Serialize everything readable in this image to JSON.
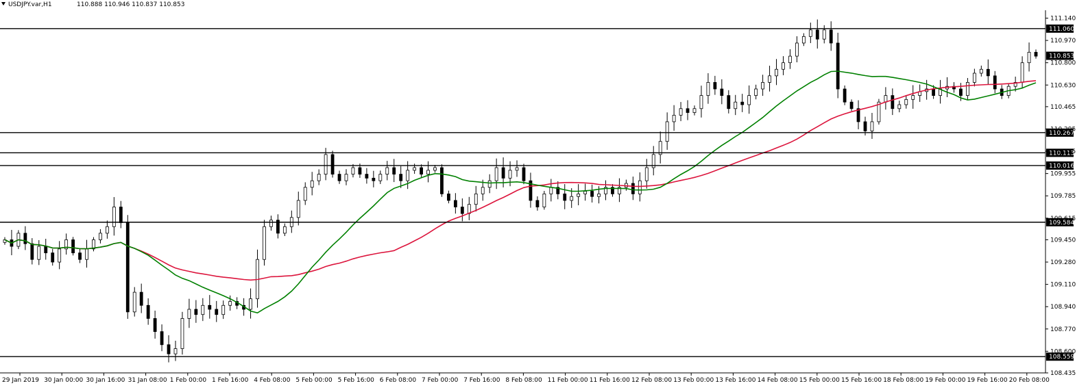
{
  "chart_data": {
    "type": "candlestick",
    "symbol_label": "USDJPY.var,H1",
    "ohlc_label": "110.888 110.946 110.837 110.853",
    "y_ticks": [
      "111.140",
      "110.970",
      "110.800",
      "110.630",
      "110.465",
      "110.295",
      "110.125",
      "109.955",
      "109.785",
      "109.615",
      "109.450",
      "109.280",
      "109.110",
      "108.940",
      "108.770",
      "108.600",
      "108.435"
    ],
    "ylim": [
      108.435,
      111.2
    ],
    "x_ticks": [
      "29 Jan 2019",
      "30 Jan 00:00",
      "30 Jan 16:00",
      "31 Jan 08:00",
      "1 Feb 00:00",
      "1 Feb 16:00",
      "4 Feb 08:00",
      "5 Feb 00:00",
      "5 Feb 16:00",
      "6 Feb 08:00",
      "7 Feb 00:00",
      "7 Feb 16:00",
      "8 Feb 08:00",
      "11 Feb 00:00",
      "11 Feb 16:00",
      "12 Feb 08:00",
      "13 Feb 00:00",
      "13 Feb 16:00",
      "14 Feb 08:00",
      "15 Feb 00:00",
      "15 Feb 16:00",
      "18 Feb 08:00",
      "19 Feb 00:00",
      "19 Feb 16:00",
      "20 Feb 08:00"
    ],
    "levels": [
      {
        "label": "111.060",
        "value": 111.06
      },
      {
        "label": "110.267",
        "value": 110.267
      },
      {
        "label": "110.113",
        "value": 110.113
      },
      {
        "label": "110.016",
        "value": 110.016
      },
      {
        "label": "109.584",
        "value": 109.584
      },
      {
        "label": "108.559",
        "value": 108.559
      }
    ],
    "current_price": {
      "label": "110.853",
      "value": 110.853
    },
    "closes": [
      109.45,
      109.4,
      109.5,
      109.42,
      109.3,
      109.4,
      109.35,
      109.28,
      109.38,
      109.45,
      109.35,
      109.3,
      109.38,
      109.45,
      109.5,
      109.55,
      109.7,
      109.58,
      108.9,
      109.05,
      108.95,
      108.85,
      108.75,
      108.65,
      108.58,
      108.62,
      108.85,
      108.92,
      108.88,
      108.95,
      108.92,
      108.88,
      108.95,
      108.98,
      108.95,
      108.92,
      109.0,
      109.3,
      109.55,
      109.6,
      109.5,
      109.55,
      109.62,
      109.75,
      109.85,
      109.9,
      109.95,
      110.1,
      109.95,
      109.9,
      109.95,
      110.0,
      109.95,
      109.92,
      109.9,
      109.95,
      110.0,
      109.95,
      109.9,
      109.98,
      110.0,
      109.95,
      109.98,
      110.0,
      109.8,
      109.75,
      109.7,
      109.65,
      109.72,
      109.8,
      109.85,
      109.9,
      110.0,
      109.92,
      109.98,
      110.0,
      109.9,
      109.75,
      109.7,
      109.8,
      109.85,
      109.8,
      109.75,
      109.78,
      109.8,
      109.82,
      109.78,
      109.8,
      109.85,
      109.8,
      109.85,
      109.88,
      109.8,
      109.9,
      110.0,
      110.1,
      110.2,
      110.35,
      110.4,
      110.45,
      110.42,
      110.45,
      110.55,
      110.65,
      110.6,
      110.55,
      110.45,
      110.5,
      110.48,
      110.55,
      110.6,
      110.65,
      110.7,
      110.75,
      110.8,
      110.85,
      110.95,
      111.0,
      111.05,
      110.98,
      111.05,
      110.95,
      110.6,
      110.5,
      110.45,
      110.35,
      110.28,
      110.35,
      110.5,
      110.55,
      110.45,
      110.48,
      110.52,
      110.55,
      110.58,
      110.6,
      110.55,
      110.6,
      110.62,
      110.6,
      110.55,
      110.65,
      110.72,
      110.75,
      110.7,
      110.6,
      110.55,
      110.62,
      110.65,
      110.8,
      110.88,
      110.85
    ],
    "ma_fast_color": "#008000",
    "ma_slow_color": "#dc143c",
    "grid": false
  }
}
